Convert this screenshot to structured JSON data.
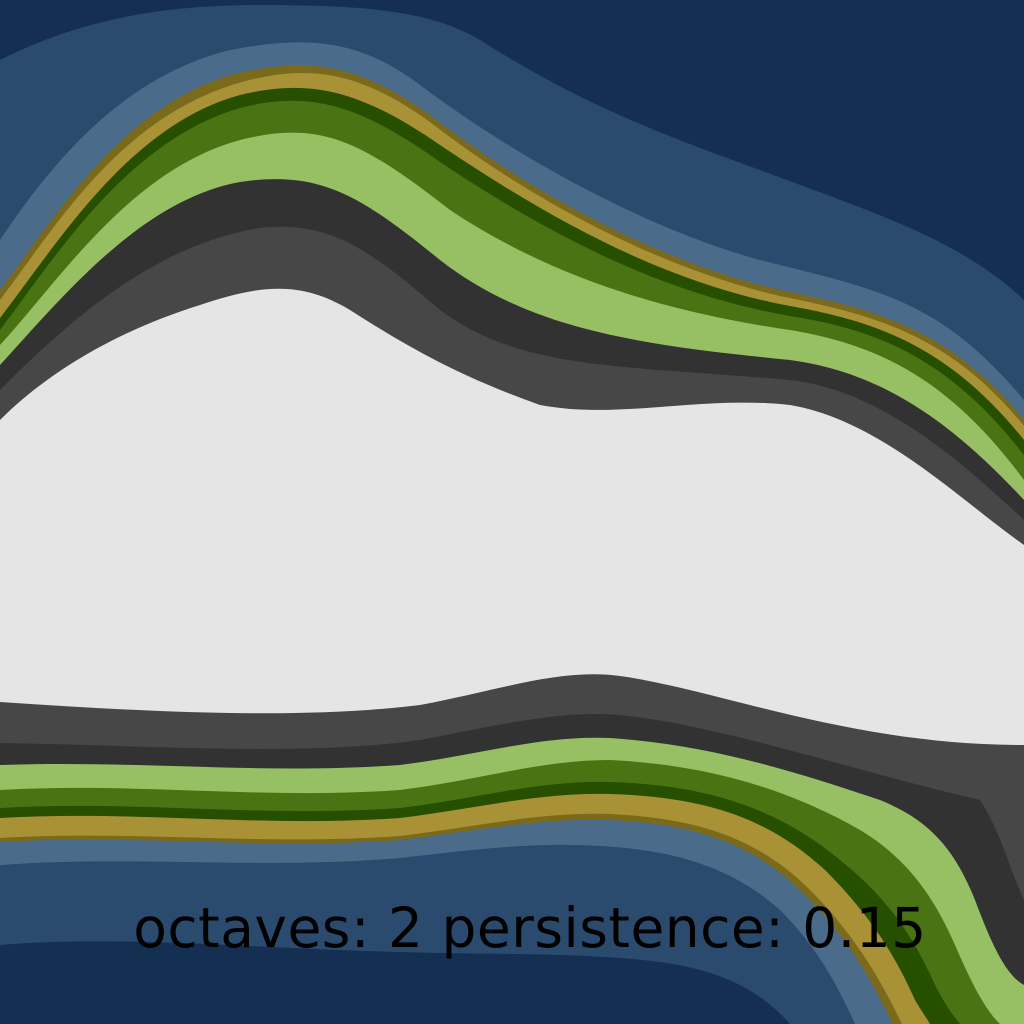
{
  "caption": {
    "text": "octaves: 2 persistence: 0.15",
    "octaves_label": "octaves:",
    "octaves_value": 2,
    "persistence_label": "persistence:",
    "persistence_value": 0.15
  },
  "palette": {
    "deep_water": "#142f52",
    "water": "#2b4b6e",
    "shallow_water": "#4a6b8a",
    "sand_edge": "#7b6a1b",
    "sand": "#a99136",
    "dark_grass": "#264f00",
    "grass": "#4a7413",
    "light_grass": "#96c063",
    "rock": "#323232",
    "mountain": "#474747",
    "snow": "#e5e5e5"
  }
}
